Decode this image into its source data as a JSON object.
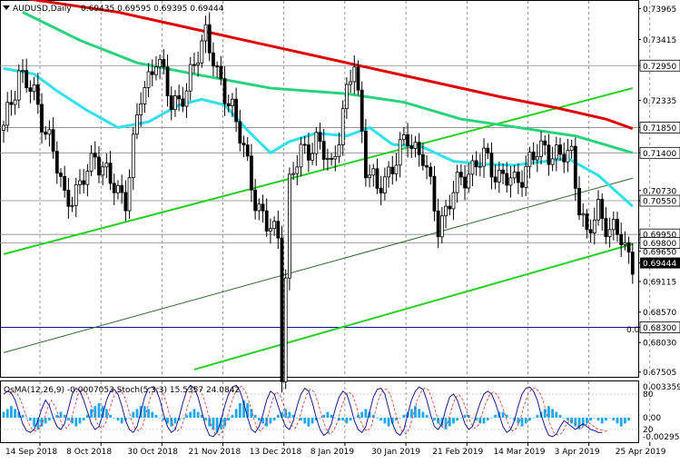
{
  "chart_data": {
    "type": "candlestick",
    "symbol": "AUDUSD,Daily",
    "ohlc_header": "0.69435 0.69595 0.69395 0.69444",
    "last_price": 0.69444,
    "last_price_label": "0.69444",
    "y_range": [
      0.6742,
      0.741
    ],
    "y_ticks": [
      "0.73965",
      "0.73415",
      "0.72950",
      "0.72335",
      "0.71850",
      "0.71400",
      "0.70730",
      "0.70550",
      "0.69950",
      "0.69800",
      "0.69650",
      "0.69444",
      "0.69115",
      "0.68570",
      "0.68300",
      "0.68030",
      "0.67505"
    ],
    "highlighted_levels": [
      {
        "value": 0.7295,
        "label": "0.72950"
      },
      {
        "value": 0.7185,
        "label": "0.71850"
      },
      {
        "value": 0.714,
        "label": "0.71400"
      },
      {
        "value": 0.7055,
        "label": "0.70550"
      },
      {
        "value": 0.6995,
        "label": "0.69950"
      },
      {
        "value": 0.698,
        "label": "0.69800"
      },
      {
        "value": 0.683,
        "label": "0.68300"
      }
    ],
    "fib_marker": "0.0",
    "x_labels": [
      "14 Sep 2018",
      "8 Oct 2018",
      "30 Oct 2018",
      "21 Nov 2018",
      "13 Dec 2018",
      "8 Jan 2019",
      "30 Jan 2019",
      "21 Feb 2019",
      "14 Mar 2019",
      "3 Apr 2019",
      "25 Apr 2019"
    ],
    "x_label_index": [
      0,
      16,
      32,
      48,
      64,
      80,
      96,
      112,
      128,
      144,
      160
    ],
    "bar_count": 166,
    "price_path": [
      [
        0,
        0.718
      ],
      [
        4,
        0.7285
      ],
      [
        8,
        0.724
      ],
      [
        12,
        0.7165
      ],
      [
        16,
        0.706
      ],
      [
        20,
        0.7075
      ],
      [
        24,
        0.714
      ],
      [
        28,
        0.7085
      ],
      [
        32,
        0.706
      ],
      [
        36,
        0.724
      ],
      [
        40,
        0.731
      ],
      [
        44,
        0.723
      ],
      [
        48,
        0.7245
      ],
      [
        51,
        0.732
      ],
      [
        53,
        0.736
      ],
      [
        56,
        0.727
      ],
      [
        60,
        0.7225
      ],
      [
        63,
        0.714
      ],
      [
        66,
        0.706
      ],
      [
        69,
        0.701
      ],
      [
        72,
        0.699
      ],
      [
        73,
        0.676
      ],
      [
        75,
        0.7085
      ],
      [
        78,
        0.714
      ],
      [
        82,
        0.716
      ],
      [
        86,
        0.7115
      ],
      [
        89,
        0.721
      ],
      [
        92,
        0.73
      ],
      [
        95,
        0.712
      ],
      [
        98,
        0.707
      ],
      [
        102,
        0.712
      ],
      [
        106,
        0.7165
      ],
      [
        110,
        0.7135
      ],
      [
        114,
        0.701
      ],
      [
        118,
        0.707
      ],
      [
        122,
        0.711
      ],
      [
        126,
        0.713
      ],
      [
        130,
        0.71
      ],
      [
        134,
        0.7085
      ],
      [
        138,
        0.7125
      ],
      [
        142,
        0.715
      ],
      [
        146,
        0.713
      ],
      [
        149,
        0.714
      ],
      [
        151,
        0.705
      ],
      [
        153,
        0.6985
      ],
      [
        156,
        0.7045
      ],
      [
        159,
        0.7
      ],
      [
        162,
        0.699
      ],
      [
        165,
        0.69444
      ]
    ],
    "moving_averages": [
      {
        "name": "MA red",
        "color": "#e00000",
        "points": [
          [
            5,
            0.7415
          ],
          [
            30,
            0.739
          ],
          [
            50,
            0.736
          ],
          [
            70,
            0.733
          ],
          [
            90,
            0.73
          ],
          [
            110,
            0.727
          ],
          [
            130,
            0.724
          ],
          [
            145,
            0.722
          ],
          [
            158,
            0.72
          ],
          [
            165,
            0.7183
          ]
        ]
      },
      {
        "name": "MA teal",
        "color": "#2ad27d",
        "points": [
          [
            5,
            0.739
          ],
          [
            20,
            0.734
          ],
          [
            35,
            0.73
          ],
          [
            50,
            0.728
          ],
          [
            70,
            0.7255
          ],
          [
            90,
            0.7245
          ],
          [
            105,
            0.723
          ],
          [
            120,
            0.72
          ],
          [
            135,
            0.7185
          ],
          [
            150,
            0.717
          ],
          [
            165,
            0.714
          ]
        ]
      },
      {
        "name": "MA cyan",
        "color": "#30e0ea",
        "points": [
          [
            0,
            0.729
          ],
          [
            8,
            0.728
          ],
          [
            14,
            0.725
          ],
          [
            22,
            0.7215
          ],
          [
            30,
            0.7185
          ],
          [
            38,
            0.7195
          ],
          [
            46,
            0.7225
          ],
          [
            52,
            0.7235
          ],
          [
            58,
            0.7225
          ],
          [
            64,
            0.718
          ],
          [
            70,
            0.714
          ],
          [
            75,
            0.716
          ],
          [
            82,
            0.7175
          ],
          [
            90,
            0.717
          ],
          [
            96,
            0.7185
          ],
          [
            102,
            0.7155
          ],
          [
            110,
            0.715
          ],
          [
            118,
            0.7125
          ],
          [
            126,
            0.712
          ],
          [
            134,
            0.7118
          ],
          [
            142,
            0.7125
          ],
          [
            148,
            0.713
          ],
          [
            156,
            0.71
          ],
          [
            165,
            0.7045
          ]
        ]
      }
    ],
    "channel_lines": [
      {
        "color": "#22d022",
        "width": 2,
        "from": [
          0,
          0.696
        ],
        "to": [
          165,
          0.7255
        ]
      },
      {
        "color": "#22d022",
        "width": 2,
        "from": [
          50,
          0.6755
        ],
        "to": [
          165,
          0.6978
        ]
      },
      {
        "color": "#2a6a2a",
        "width": 1,
        "from": [
          0,
          0.6785
        ],
        "to": [
          165,
          0.7095
        ]
      }
    ],
    "grid_dashes": true,
    "indicator": {
      "label": "OsMA(12,26,9) -0.0007053  Stoch(5,3,3) 15.5357 24.0842",
      "right_ticks": [
        "0.0033591",
        "0.00",
        "-0.0029511"
      ],
      "stoch_marks": [
        "80",
        "20"
      ],
      "histogram": [
        2,
        3,
        4,
        3,
        2,
        1,
        0,
        -1,
        -3,
        -4,
        -3,
        -2,
        -1,
        0,
        1,
        2,
        1,
        -1,
        -2,
        -3,
        -2,
        -1,
        1,
        3,
        4,
        5,
        4,
        3,
        1,
        0,
        -1,
        -2,
        -1,
        0,
        2,
        3,
        4,
        4,
        3,
        2,
        1,
        0,
        -1,
        -2,
        -3,
        -2,
        -1,
        0,
        1,
        2,
        3,
        2,
        1,
        -1,
        -3,
        -4,
        -5,
        -4,
        -3,
        -1,
        1,
        3,
        5,
        6,
        5,
        3,
        1,
        -1,
        -2,
        -3,
        -2,
        -1,
        1,
        2,
        3,
        2,
        1,
        0,
        -1,
        -2,
        -3,
        -2,
        -1,
        0,
        1,
        2,
        1,
        0,
        -1,
        -1,
        -2,
        -1,
        0,
        1,
        2,
        3,
        2,
        1,
        0,
        -1,
        -2,
        -3,
        -2,
        -1,
        0,
        1,
        2,
        3,
        4,
        3,
        2,
        1,
        0,
        -1,
        -2,
        -3,
        -4,
        -3,
        -2,
        -1,
        0,
        1,
        1,
        0,
        -1,
        -2,
        -2,
        -1,
        0,
        1,
        2,
        2,
        1,
        0,
        -1,
        -2,
        -3,
        -2,
        -1,
        0,
        1,
        2,
        3,
        4,
        3,
        2,
        1,
        0,
        -1,
        -2,
        -3,
        -4,
        -3,
        -2,
        -1,
        0,
        -1,
        -2,
        -1,
        0,
        -1,
        -2,
        -3,
        -2,
        -1
      ],
      "stoch_main": [
        80,
        85,
        82,
        70,
        50,
        30,
        18,
        15,
        20,
        35,
        55,
        70,
        60,
        40,
        25,
        20,
        30,
        55,
        80,
        90,
        85,
        70,
        50,
        30,
        20,
        25,
        45,
        70,
        85,
        88,
        80,
        60,
        35,
        20,
        15,
        25,
        50,
        75,
        90,
        92,
        88,
        70,
        45,
        25,
        15,
        20,
        40,
        65,
        85,
        95,
        90,
        75,
        50,
        25,
        10,
        8,
        15,
        35,
        60,
        80,
        92,
        95,
        85,
        65,
        40,
        20,
        15,
        25,
        45,
        70,
        85,
        80,
        60,
        40,
        25,
        20,
        35,
        60,
        80,
        90,
        85,
        65,
        40,
        20,
        10,
        15,
        30,
        55,
        75,
        85,
        80,
        60,
        35,
        20,
        15,
        25,
        50,
        75,
        88,
        90,
        80,
        55,
        30,
        15,
        10,
        20,
        45,
        70,
        85,
        92,
        88,
        70,
        45,
        25,
        20,
        30,
        55,
        75,
        80,
        70,
        50,
        30,
        20,
        25,
        45,
        65,
        80,
        85,
        80,
        65,
        45,
        25,
        15,
        20,
        35,
        60,
        80,
        90,
        92,
        85,
        70,
        45,
        25,
        10,
        8,
        12,
        25,
        35,
        30,
        25,
        20,
        25,
        30,
        25,
        20,
        18,
        15,
        15
      ]
    }
  }
}
